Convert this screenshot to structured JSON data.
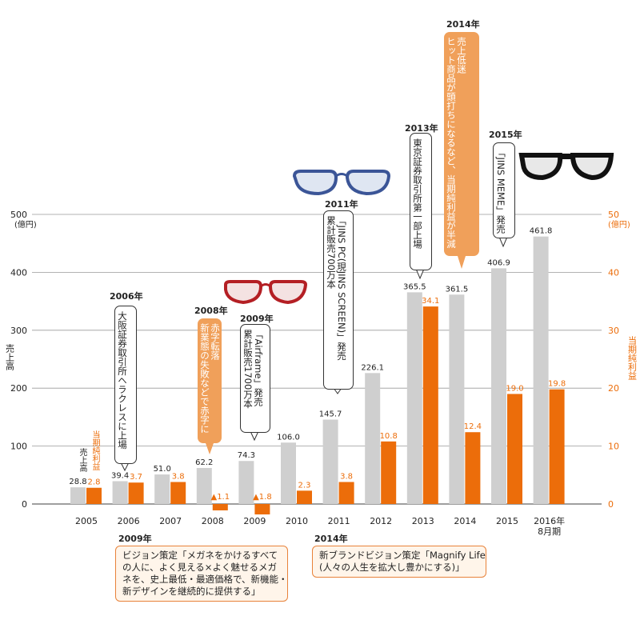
{
  "chart_data": {
    "type": "bar",
    "categories": [
      "2005",
      "2006",
      "2007",
      "2008",
      "2009",
      "2010",
      "2011",
      "2012",
      "2013",
      "2014",
      "2015",
      "2016年\n8月期"
    ],
    "series": [
      {
        "name": "売上高",
        "values": [
          28.8,
          39.4,
          51.0,
          62.2,
          74.3,
          106.0,
          145.7,
          226.1,
          365.5,
          361.5,
          406.9,
          461.8
        ],
        "labels": [
          "28.8",
          "39.4",
          "51.0",
          "62.2",
          "74.3",
          "106.0",
          "145.7",
          "226.1",
          "365.5",
          "361.5",
          "406.9",
          "461.8"
        ],
        "color": "#cfcfcf"
      },
      {
        "name": "当期純利益",
        "values": [
          2.8,
          3.7,
          3.8,
          -1.1,
          -1.8,
          2.3,
          3.8,
          10.8,
          34.1,
          12.4,
          19.0,
          19.8
        ],
        "labels": [
          "2.8",
          "3.7",
          "3.8",
          "▲1.1",
          "▲1.8",
          "2.3",
          "3.8",
          "10.8",
          "34.1",
          "12.4",
          "19.0",
          "19.8"
        ],
        "color": "#ec6d0a"
      }
    ],
    "left_axis": {
      "label": "売上高",
      "unit": "(億円)",
      "ticks": [
        0,
        100,
        200,
        300,
        400,
        500
      ],
      "ylim": [
        0,
        500
      ]
    },
    "right_axis": {
      "label": "当期純利益",
      "unit": "(億円)",
      "ticks": [
        0,
        10,
        20,
        30,
        40,
        50
      ],
      "ylim": [
        0,
        50
      ]
    },
    "grid": true
  },
  "series_labels": {
    "sales": "売上高",
    "profit": "当期純利益"
  },
  "callouts": [
    {
      "year": "2006年",
      "text": "大阪証券取引所ヘラクレスに上場",
      "style": "white"
    },
    {
      "year": "2008年",
      "text": "赤字転落\n新業態の失敗などで赤字に",
      "style": "orange"
    },
    {
      "year": "2009年",
      "text": "「Airframe」発売\n累計販売1700万本",
      "style": "white"
    },
    {
      "year": "2011年",
      "text": "「JINS PC(現JINS SCREEN)」発売\n累計販売700万本",
      "style": "white"
    },
    {
      "year": "2013年",
      "text": "東京証券取引所第一部上場",
      "style": "white"
    },
    {
      "year": "2014年",
      "text": "売上低迷\nヒット商品が頭打ちになるなど、当期純利益が半減",
      "style": "orange"
    },
    {
      "year": "2015年",
      "text": "「JINS MEME」発売",
      "style": "white"
    }
  ],
  "notes": [
    {
      "year": "2009年",
      "text": "ビジョン策定「メガネをかけるすべて\nの人に、よく見える×よく魅せるメガ\nネを、史上最低・最適価格で、新機能・\n新デザインを継続的に提供する」"
    },
    {
      "year": "2014年",
      "text": "新ブランドビジョン策定「Magnify Life\n(人々の人生を拡大し豊かにする)」"
    }
  ]
}
